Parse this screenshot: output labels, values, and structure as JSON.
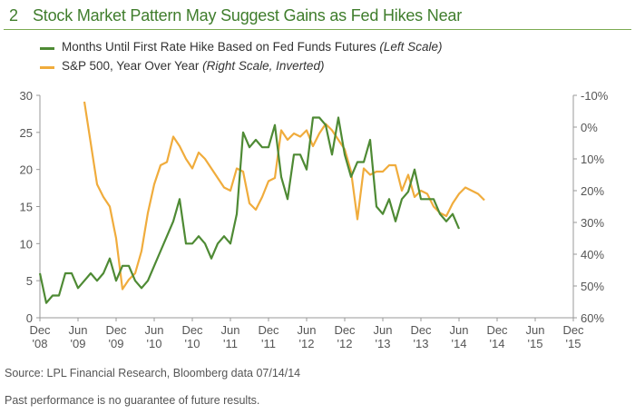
{
  "figure": {
    "number": "2",
    "title": "Stock Market Pattern May Suggest Gains as Fed Hikes Near"
  },
  "legend": {
    "series1": {
      "main": "Months Until First Rate Hike Based on Fed Funds Futures",
      "note": "(Left Scale)"
    },
    "series2": {
      "main": "S&P 500, Year Over Year",
      "note": "(Right Scale, Inverted)"
    }
  },
  "source": "Source: LPL Financial Research, Bloomberg data   07/14/14",
  "disclaimer": "Past performance is no guarantee of future results.",
  "colors": {
    "series1": "#4e8a34",
    "series2": "#f0ac3c",
    "title": "#3f7d2c",
    "axis": "#999999"
  },
  "chart_data": {
    "type": "line",
    "x_ticks": [
      [
        "Dec",
        "'08"
      ],
      [
        "Jun",
        "'09"
      ],
      [
        "Dec",
        "'09"
      ],
      [
        "Jun",
        "'10"
      ],
      [
        "Dec",
        "'10"
      ],
      [
        "Jun",
        "'11"
      ],
      [
        "Dec",
        "'11"
      ],
      [
        "Jun",
        "'12"
      ],
      [
        "Dec",
        "'12"
      ],
      [
        "Jun",
        "'13"
      ],
      [
        "Dec",
        "'13"
      ],
      [
        "Jun",
        "'14"
      ],
      [
        "Dec",
        "'14"
      ],
      [
        "Jun",
        "'15"
      ],
      [
        "Dec",
        "'15"
      ]
    ],
    "x_range": [
      "2008-12",
      "2015-12"
    ],
    "y_left": {
      "min": 0,
      "max": 30,
      "ticks": [
        0,
        5,
        10,
        15,
        20,
        25,
        30
      ]
    },
    "y_right": {
      "min": 60,
      "max": -10,
      "inverted": true,
      "ticks": [
        -10,
        0,
        10,
        20,
        30,
        40,
        50,
        60
      ],
      "tick_labels": [
        "-10%",
        "0%",
        "10%",
        "20%",
        "30%",
        "40%",
        "50%",
        "60%"
      ]
    },
    "series": [
      {
        "name": "Months Until First Rate Hike Based on Fed Funds Futures",
        "axis": "left",
        "points": [
          [
            "2008-12",
            6
          ],
          [
            "2009-01",
            2
          ],
          [
            "2009-02",
            3
          ],
          [
            "2009-03",
            3
          ],
          [
            "2009-04",
            6
          ],
          [
            "2009-05",
            6
          ],
          [
            "2009-06",
            4
          ],
          [
            "2009-07",
            5
          ],
          [
            "2009-08",
            6
          ],
          [
            "2009-09",
            5
          ],
          [
            "2009-10",
            6
          ],
          [
            "2009-11",
            8
          ],
          [
            "2009-12",
            5
          ],
          [
            "2010-01",
            7
          ],
          [
            "2010-02",
            7
          ],
          [
            "2010-03",
            5
          ],
          [
            "2010-04",
            4
          ],
          [
            "2010-05",
            5
          ],
          [
            "2010-06",
            7
          ],
          [
            "2010-07",
            9
          ],
          [
            "2010-08",
            11
          ],
          [
            "2010-09",
            13
          ],
          [
            "2010-10",
            16
          ],
          [
            "2010-11",
            10
          ],
          [
            "2010-12",
            10
          ],
          [
            "2011-01",
            11
          ],
          [
            "2011-02",
            10
          ],
          [
            "2011-03",
            8
          ],
          [
            "2011-04",
            10
          ],
          [
            "2011-05",
            11
          ],
          [
            "2011-06",
            10
          ],
          [
            "2011-07",
            14
          ],
          [
            "2011-08",
            25
          ],
          [
            "2011-09",
            23
          ],
          [
            "2011-10",
            24
          ],
          [
            "2011-11",
            23
          ],
          [
            "2011-12",
            23
          ],
          [
            "2012-01",
            26
          ],
          [
            "2012-02",
            19
          ],
          [
            "2012-03",
            16
          ],
          [
            "2012-04",
            22
          ],
          [
            "2012-05",
            22
          ],
          [
            "2012-06",
            20
          ],
          [
            "2012-07",
            27
          ],
          [
            "2012-08",
            27
          ],
          [
            "2012-09",
            26
          ],
          [
            "2012-10",
            22
          ],
          [
            "2012-11",
            27
          ],
          [
            "2012-12",
            22
          ],
          [
            "2013-01",
            19
          ],
          [
            "2013-02",
            21
          ],
          [
            "2013-03",
            21
          ],
          [
            "2013-04",
            24
          ],
          [
            "2013-05",
            15
          ],
          [
            "2013-06",
            14
          ],
          [
            "2013-07",
            16
          ],
          [
            "2013-08",
            13
          ],
          [
            "2013-09",
            16
          ],
          [
            "2013-10",
            17
          ],
          [
            "2013-11",
            20
          ],
          [
            "2013-12",
            16
          ],
          [
            "2014-01",
            16
          ],
          [
            "2014-02",
            16
          ],
          [
            "2014-03",
            14
          ],
          [
            "2014-04",
            13
          ],
          [
            "2014-05",
            14
          ],
          [
            "2014-06",
            12
          ]
        ]
      },
      {
        "name": "S&P 500, Year Over Year",
        "axis": "right",
        "points": [
          [
            "2009-07",
            -8
          ],
          [
            "2009-09",
            18
          ],
          [
            "2009-10",
            22
          ],
          [
            "2009-11",
            25
          ],
          [
            "2009-12",
            35
          ],
          [
            "2010-01",
            51
          ],
          [
            "2010-02",
            48
          ],
          [
            "2010-03",
            46
          ],
          [
            "2010-04",
            39
          ],
          [
            "2010-05",
            27
          ],
          [
            "2010-06",
            18
          ],
          [
            "2010-07",
            12
          ],
          [
            "2010-08",
            11
          ],
          [
            "2010-09",
            3
          ],
          [
            "2010-10",
            6
          ],
          [
            "2010-11",
            10
          ],
          [
            "2010-12",
            13
          ],
          [
            "2011-01",
            8
          ],
          [
            "2011-02",
            10
          ],
          [
            "2011-03",
            13
          ],
          [
            "2011-04",
            16
          ],
          [
            "2011-05",
            19
          ],
          [
            "2011-06",
            20
          ],
          [
            "2011-07",
            13
          ],
          [
            "2011-08",
            14
          ],
          [
            "2011-09",
            24
          ],
          [
            "2011-10",
            26
          ],
          [
            "2011-11",
            22
          ],
          [
            "2011-12",
            17
          ],
          [
            "2012-01",
            16
          ],
          [
            "2012-02",
            1
          ],
          [
            "2012-03",
            4
          ],
          [
            "2012-04",
            2
          ],
          [
            "2012-05",
            3
          ],
          [
            "2012-06",
            1
          ],
          [
            "2012-07",
            6
          ],
          [
            "2012-08",
            2
          ],
          [
            "2012-09",
            -1
          ],
          [
            "2012-10",
            1
          ],
          [
            "2012-11",
            4
          ],
          [
            "2012-12",
            7
          ],
          [
            "2013-01",
            14
          ],
          [
            "2013-02",
            29
          ],
          [
            "2013-03",
            13
          ],
          [
            "2013-04",
            15
          ],
          [
            "2013-05",
            14
          ],
          [
            "2013-06",
            14
          ],
          [
            "2013-07",
            12
          ],
          [
            "2013-08",
            12
          ],
          [
            "2013-09",
            20
          ],
          [
            "2013-10",
            15
          ],
          [
            "2013-11",
            22
          ],
          [
            "2013-12",
            20
          ],
          [
            "2014-01",
            21
          ],
          [
            "2014-02",
            25
          ],
          [
            "2014-03",
            27
          ],
          [
            "2014-04",
            28
          ],
          [
            "2014-05",
            24
          ],
          [
            "2014-06",
            21
          ],
          [
            "2014-07",
            19
          ],
          [
            "2014-08",
            20
          ],
          [
            "2014-09",
            21
          ],
          [
            "2014-10",
            23
          ]
        ]
      }
    ]
  }
}
